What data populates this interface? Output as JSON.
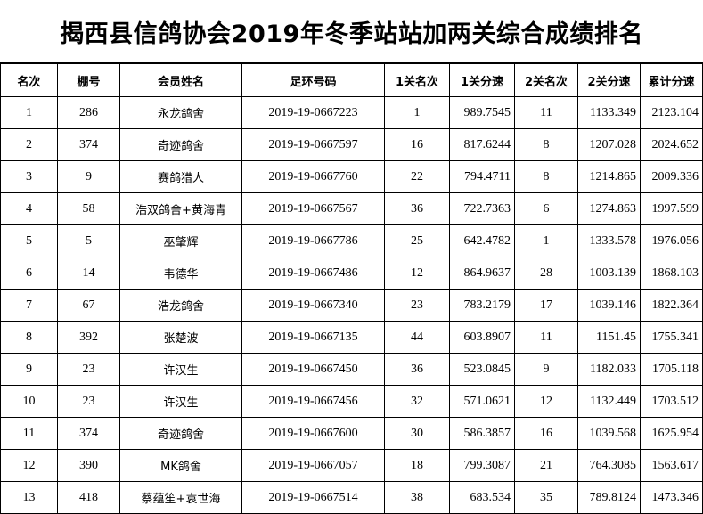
{
  "title": "揭西县信鸽协会2019年冬季站站加两关综合成绩排名",
  "headers": [
    "名次",
    "棚号",
    "会员姓名",
    "足环号码",
    "1关名次",
    "1关分速",
    "2关名次",
    "2关分速",
    "累计分速"
  ],
  "rows": [
    [
      "1",
      "286",
      "永龙鸽舍",
      "2019-19-0667223",
      "1",
      "989.7545",
      "11",
      "1133.349",
      "2123.104"
    ],
    [
      "2",
      "374",
      "奇迹鸽舍",
      "2019-19-0667597",
      "16",
      "817.6244",
      "8",
      "1207.028",
      "2024.652"
    ],
    [
      "3",
      "9",
      "赛鸽猎人",
      "2019-19-0667760",
      "22",
      "794.4711",
      "8",
      "1214.865",
      "2009.336"
    ],
    [
      "4",
      "58",
      "浩双鸽舍+黄海青",
      "2019-19-0667567",
      "36",
      "722.7363",
      "6",
      "1274.863",
      "1997.599"
    ],
    [
      "5",
      "5",
      "巫肇辉",
      "2019-19-0667786",
      "25",
      "642.4782",
      "1",
      "1333.578",
      "1976.056"
    ],
    [
      "6",
      "14",
      "韦德华",
      "2019-19-0667486",
      "12",
      "864.9637",
      "28",
      "1003.139",
      "1868.103"
    ],
    [
      "7",
      "67",
      "浩龙鸽舍",
      "2019-19-0667340",
      "23",
      "783.2179",
      "17",
      "1039.146",
      "1822.364"
    ],
    [
      "8",
      "392",
      "张楚波",
      "2019-19-0667135",
      "44",
      "603.8907",
      "11",
      "1151.45",
      "1755.341"
    ],
    [
      "9",
      "23",
      "许汉生",
      "2019-19-0667450",
      "36",
      "523.0845",
      "9",
      "1182.033",
      "1705.118"
    ],
    [
      "10",
      "23",
      "许汉生",
      "2019-19-0667456",
      "32",
      "571.0621",
      "12",
      "1132.449",
      "1703.512"
    ],
    [
      "11",
      "374",
      "奇迹鸽舍",
      "2019-19-0667600",
      "30",
      "586.3857",
      "16",
      "1039.568",
      "1625.954"
    ],
    [
      "12",
      "390",
      "MK鸽舍",
      "2019-19-0667057",
      "18",
      "799.3087",
      "21",
      "764.3085",
      "1563.617"
    ],
    [
      "13",
      "418",
      "蔡蕴笙+袁世海",
      "2019-19-0667514",
      "38",
      "683.534",
      "35",
      "789.8124",
      "1473.346"
    ]
  ]
}
